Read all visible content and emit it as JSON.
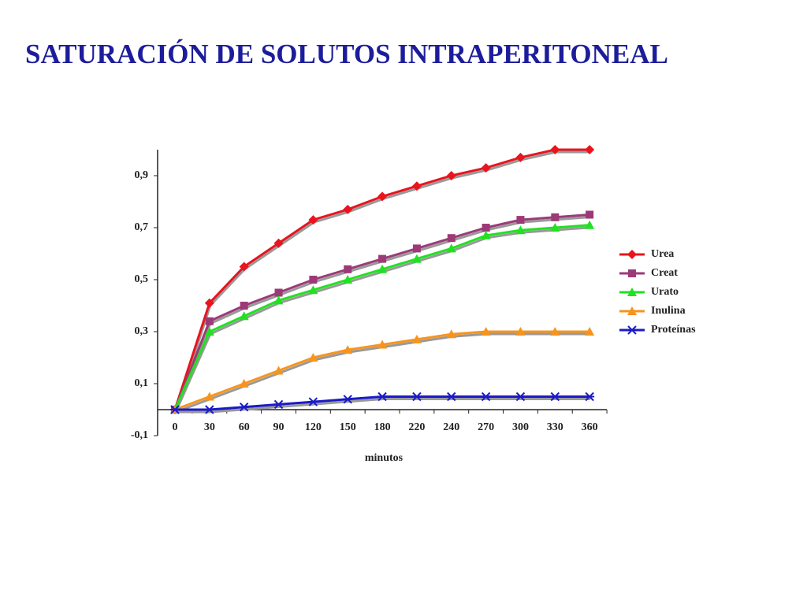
{
  "chart_data": {
    "type": "line",
    "title": "SATURACIÓN DE SOLUTOS INTRAPERITONEAL",
    "x_label": "minutos",
    "categories": [
      "0",
      "30",
      "60",
      "90",
      "120",
      "150",
      "180",
      "220",
      "240",
      "270",
      "300",
      "330",
      "360"
    ],
    "ylim": [
      -0.1,
      1.0
    ],
    "yticks": [
      {
        "value": -0.1,
        "label": "-0,1"
      },
      {
        "value": 0.1,
        "label": "0,1"
      },
      {
        "value": 0.3,
        "label": "0,3"
      },
      {
        "value": 0.5,
        "label": "0,5"
      },
      {
        "value": 0.7,
        "label": "0,7"
      },
      {
        "value": 0.9,
        "label": "0,9"
      }
    ],
    "legend": "right",
    "series": [
      {
        "name": "Urea",
        "color": "#e8141e",
        "marker": "diamond",
        "values": [
          0,
          0.41,
          0.55,
          0.64,
          0.73,
          0.77,
          0.82,
          0.86,
          0.9,
          0.93,
          0.97,
          1.0,
          1.0
        ]
      },
      {
        "name": "Creat",
        "color": "#9c3a78",
        "marker": "square",
        "values": [
          0,
          0.34,
          0.4,
          0.45,
          0.5,
          0.54,
          0.58,
          0.62,
          0.66,
          0.7,
          0.73,
          0.74,
          0.75
        ]
      },
      {
        "name": "Urato",
        "color": "#22e022",
        "marker": "triangle",
        "values": [
          0,
          0.3,
          0.36,
          0.42,
          0.46,
          0.5,
          0.54,
          0.58,
          0.62,
          0.67,
          0.69,
          0.7,
          0.71
        ]
      },
      {
        "name": "Inulina",
        "color": "#f7941d",
        "marker": "triangle",
        "values": [
          0,
          0.05,
          0.1,
          0.15,
          0.2,
          0.23,
          0.25,
          0.27,
          0.29,
          0.3,
          0.3,
          0.3,
          0.3
        ]
      },
      {
        "name": "Proteínas",
        "color": "#1a1ac8",
        "marker": "asterisk",
        "values": [
          0,
          0,
          0.01,
          0.02,
          0.03,
          0.04,
          0.05,
          0.05,
          0.05,
          0.05,
          0.05,
          0.05,
          0.05
        ]
      }
    ]
  }
}
